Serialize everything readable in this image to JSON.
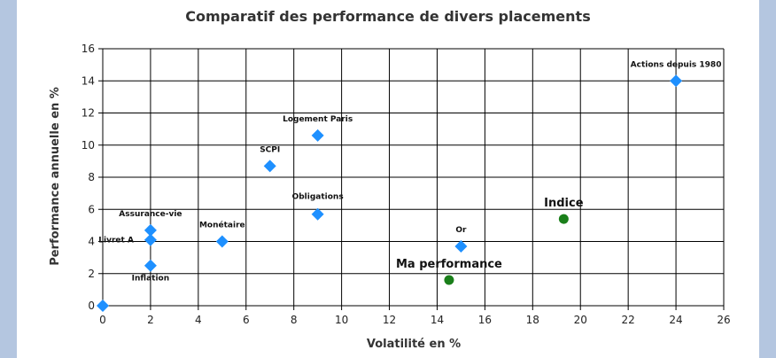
{
  "chart_data": {
    "type": "scatter",
    "title": "Comparatif des performance de divers placements",
    "xlabel": "Volatilité en %",
    "ylabel": "Performance annuelle en %",
    "xlim": [
      0,
      26
    ],
    "ylim": [
      0,
      16
    ],
    "xticks": [
      0,
      2,
      4,
      6,
      8,
      10,
      12,
      14,
      16,
      18,
      20,
      22,
      24,
      26
    ],
    "yticks": [
      0,
      2,
      4,
      6,
      8,
      10,
      12,
      14,
      16
    ],
    "grid": true,
    "series": [
      {
        "marker": "diamond",
        "color": "#1e90ff",
        "points": [
          {
            "x": 0,
            "y": 0,
            "label": ""
          },
          {
            "x": 2,
            "y": 4.7,
            "label": "Assurance-vie"
          },
          {
            "x": 2,
            "y": 4.1,
            "label": "Livret A"
          },
          {
            "x": 2,
            "y": 2.5,
            "label": "Inflation"
          },
          {
            "x": 5,
            "y": 4.0,
            "label": "Monétaire"
          },
          {
            "x": 7,
            "y": 8.7,
            "label": "SCPI"
          },
          {
            "x": 9,
            "y": 10.6,
            "label": "Logement Paris"
          },
          {
            "x": 9,
            "y": 5.7,
            "label": "Obligations"
          },
          {
            "x": 15,
            "y": 3.7,
            "label": "Or"
          },
          {
            "x": 24,
            "y": 14,
            "label": "Actions depuis 1980"
          }
        ]
      },
      {
        "marker": "circle",
        "color": "#1a7f1a",
        "points": [
          {
            "x": 14.5,
            "y": 1.6,
            "label": "Ma performance"
          },
          {
            "x": 19.3,
            "y": 5.4,
            "label": "Indice"
          }
        ]
      }
    ]
  }
}
